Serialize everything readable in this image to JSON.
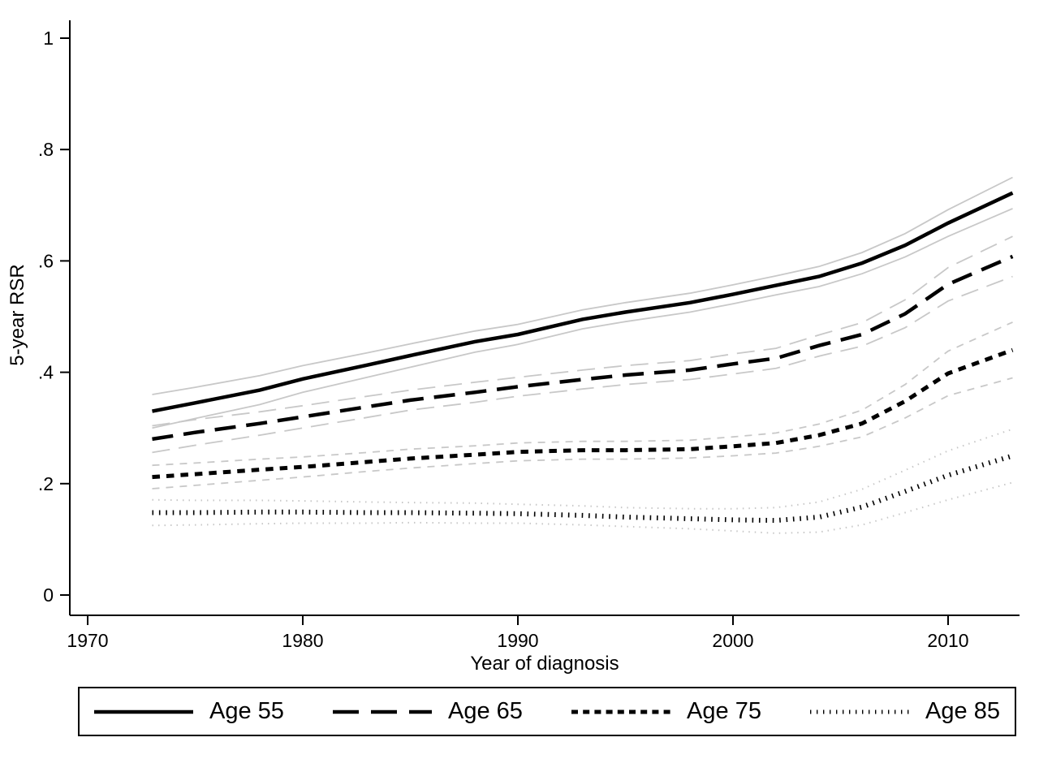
{
  "figure": {
    "background_color": "#ffffff",
    "line_color": "#000000",
    "ci_color": "#c8c8c8"
  },
  "chart_data": {
    "type": "line",
    "title": "",
    "xlabel": "Year of diagnosis",
    "ylabel": "5-year RSR",
    "xlim": [
      1969.2,
      2013.3
    ],
    "ylim": [
      0,
      1.04
    ],
    "grid": false,
    "ci_shown": true,
    "legend_position": "bottom",
    "x_ticks": {
      "values": [
        1970,
        1980,
        1990,
        2000,
        2010
      ],
      "labels": [
        "1970",
        "1980",
        "1990",
        "2000",
        "2010"
      ]
    },
    "y_ticks": {
      "values": [
        0,
        0.2,
        0.4,
        0.6,
        0.8,
        1
      ],
      "labels": [
        "0",
        ".2",
        ".4",
        ".6",
        ".8",
        "1"
      ]
    },
    "x": [
      1973,
      1975,
      1978,
      1980,
      1983,
      1985,
      1988,
      1990,
      1993,
      1995,
      1998,
      2000,
      2002,
      2004,
      2006,
      2008,
      2010,
      2013
    ],
    "series": [
      {
        "name": "Age 55",
        "pattern": "solid",
        "values": [
          0.33,
          0.345,
          0.368,
          0.388,
          0.413,
          0.43,
          0.455,
          0.468,
          0.495,
          0.508,
          0.525,
          0.54,
          0.556,
          0.572,
          0.596,
          0.628,
          0.668,
          0.722
        ],
        "ci_half_width": [
          0.03,
          0.028,
          0.026,
          0.024,
          0.022,
          0.021,
          0.019,
          0.018,
          0.017,
          0.017,
          0.017,
          0.017,
          0.017,
          0.018,
          0.019,
          0.021,
          0.024,
          0.028
        ]
      },
      {
        "name": "Age 65",
        "pattern": "longdash",
        "values": [
          0.28,
          0.292,
          0.308,
          0.32,
          0.338,
          0.35,
          0.364,
          0.374,
          0.387,
          0.395,
          0.404,
          0.415,
          0.425,
          0.448,
          0.468,
          0.505,
          0.558,
          0.608
        ],
        "ci_half_width": [
          0.024,
          0.023,
          0.021,
          0.02,
          0.019,
          0.018,
          0.018,
          0.017,
          0.017,
          0.017,
          0.017,
          0.018,
          0.018,
          0.019,
          0.021,
          0.025,
          0.03,
          0.036
        ]
      },
      {
        "name": "Age 75",
        "pattern": "shortdash",
        "values": [
          0.212,
          0.217,
          0.225,
          0.23,
          0.239,
          0.245,
          0.252,
          0.257,
          0.26,
          0.26,
          0.262,
          0.267,
          0.273,
          0.287,
          0.308,
          0.348,
          0.398,
          0.44
        ],
        "ci_half_width": [
          0.021,
          0.02,
          0.019,
          0.018,
          0.017,
          0.017,
          0.016,
          0.016,
          0.016,
          0.016,
          0.016,
          0.017,
          0.018,
          0.02,
          0.024,
          0.03,
          0.04,
          0.05
        ]
      },
      {
        "name": "Age 85",
        "pattern": "dot",
        "values": [
          0.148,
          0.148,
          0.149,
          0.149,
          0.148,
          0.148,
          0.147,
          0.146,
          0.143,
          0.14,
          0.137,
          0.135,
          0.134,
          0.14,
          0.158,
          0.186,
          0.215,
          0.25
        ],
        "ci_half_width": [
          0.023,
          0.022,
          0.021,
          0.02,
          0.019,
          0.018,
          0.018,
          0.017,
          0.017,
          0.017,
          0.018,
          0.02,
          0.023,
          0.027,
          0.032,
          0.038,
          0.044,
          0.048
        ]
      }
    ]
  }
}
